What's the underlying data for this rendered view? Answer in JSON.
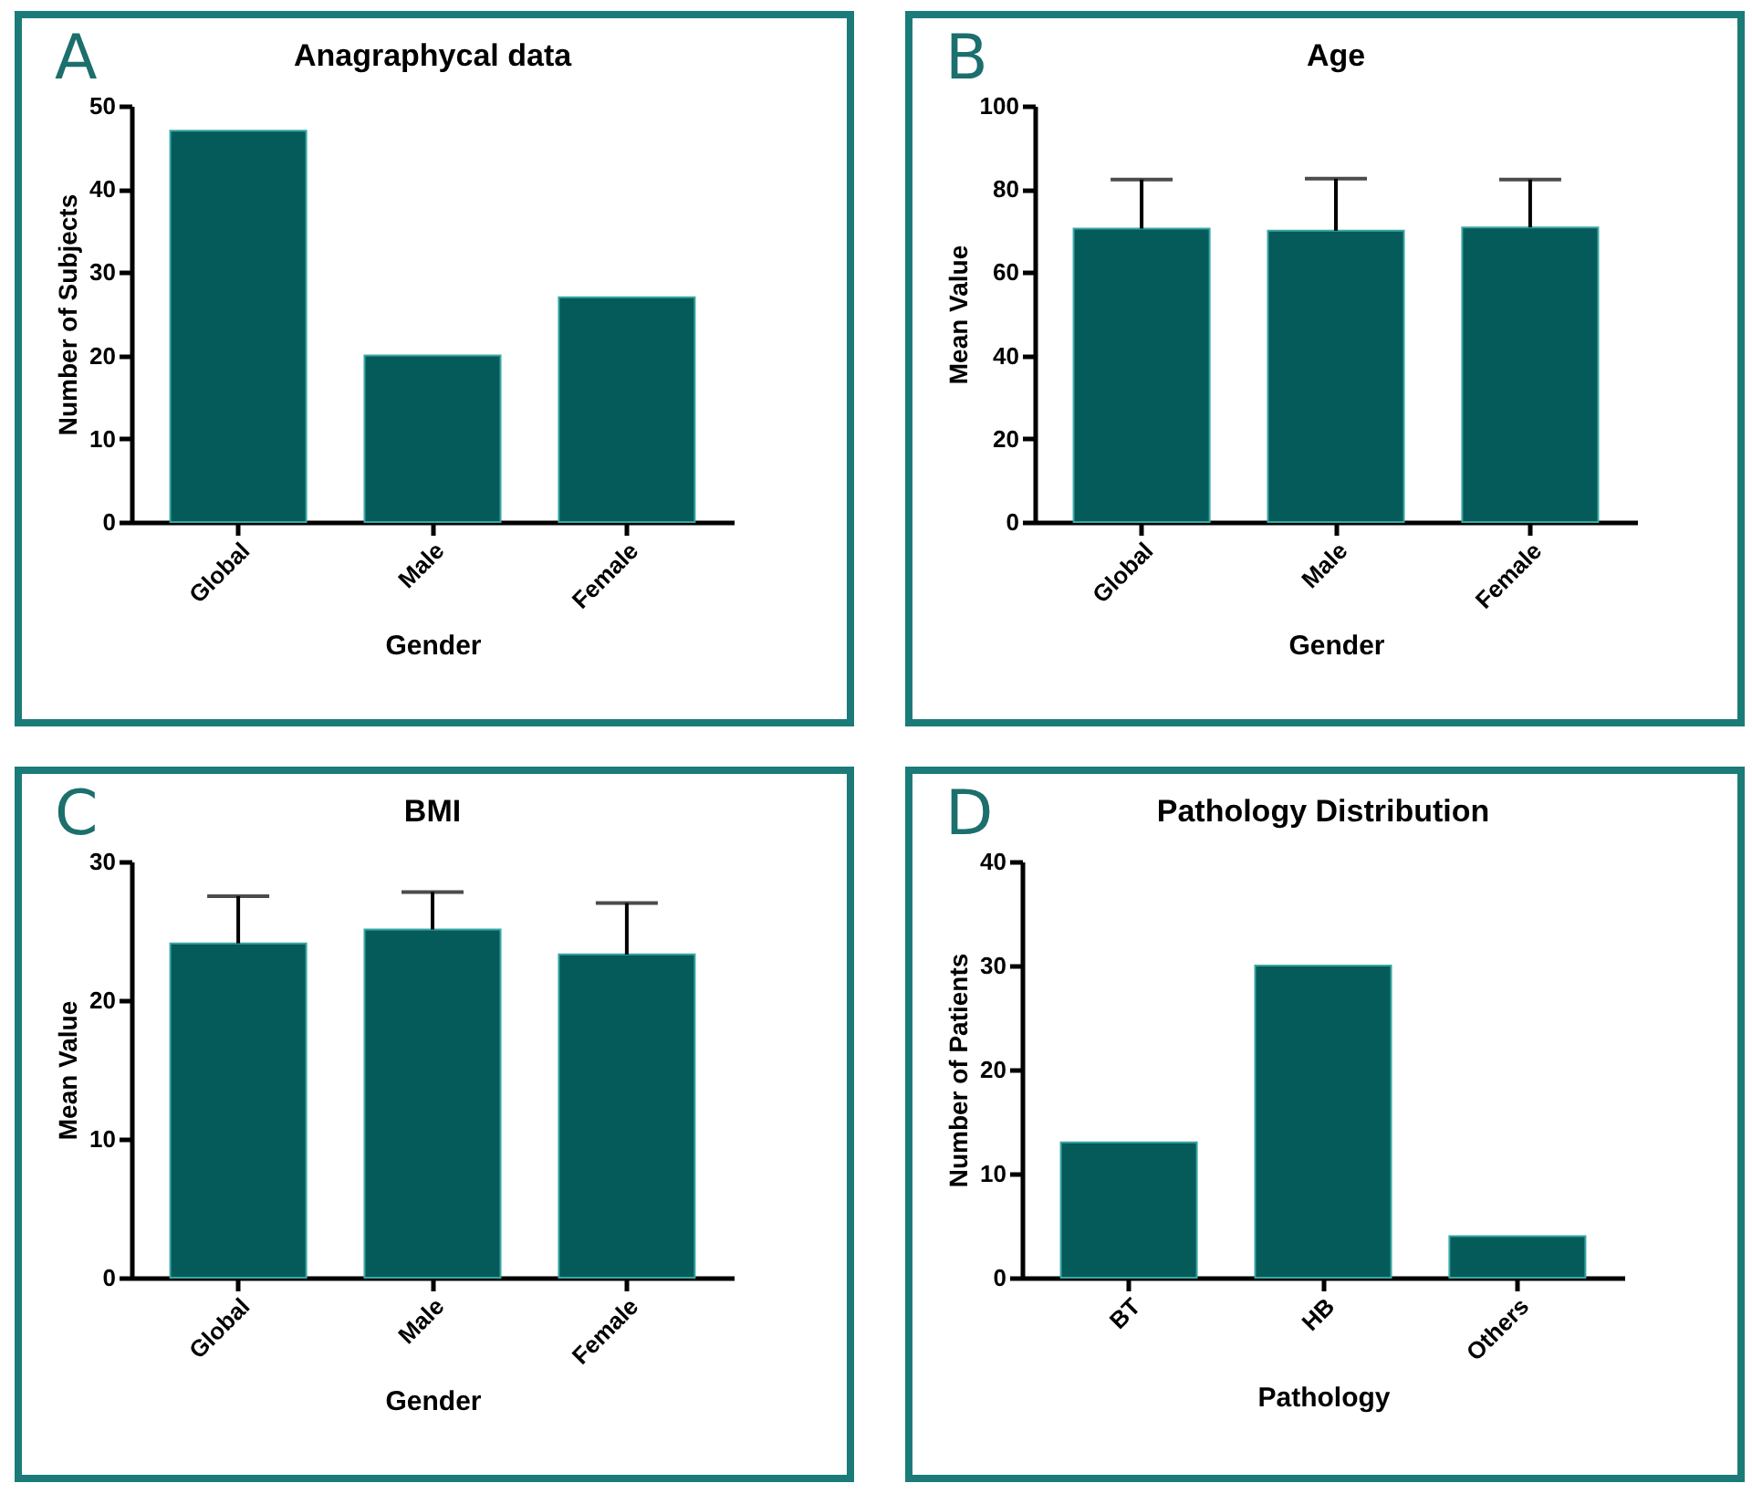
{
  "chart_data": [
    {
      "type": "bar",
      "title": "Anagraphycal data",
      "xlabel": "Gender",
      "ylabel": "Number of Subjects",
      "annotations": [
        "A"
      ],
      "categories": [
        "Global",
        "Male",
        "Female"
      ],
      "values": [
        47,
        20,
        27
      ],
      "color": "#045b59",
      "ylim": [
        0,
        50
      ],
      "yticks": [
        0,
        10,
        20,
        30,
        40,
        50
      ],
      "grid": false
    },
    {
      "type": "bar",
      "title": "Age",
      "xlabel": "Gender",
      "ylabel": "Mean Value",
      "annotations": [
        "B"
      ],
      "categories": [
        "Global",
        "Male",
        "Female"
      ],
      "values": [
        70.5,
        70,
        70.8
      ],
      "errors": [
        11.8,
        12.5,
        11.5
      ],
      "color": "#045b59",
      "ylim": [
        0,
        100
      ],
      "yticks": [
        0,
        20,
        40,
        60,
        80,
        100
      ],
      "grid": false
    },
    {
      "type": "bar",
      "title": "BMI",
      "xlabel": "Gender",
      "ylabel": "Mean Value",
      "annotations": [
        "C"
      ],
      "categories": [
        "Global",
        "Male",
        "Female"
      ],
      "values": [
        24.1,
        25.1,
        23.3
      ],
      "errors": [
        3.4,
        2.7,
        3.7
      ],
      "color": "#045b59",
      "ylim": [
        0,
        30
      ],
      "yticks": [
        0,
        10,
        20,
        30
      ],
      "grid": false
    },
    {
      "type": "bar",
      "title": "Pathology Distribution",
      "xlabel": "Pathology",
      "ylabel": "Number of Patients",
      "annotations": [
        "D"
      ],
      "categories": [
        "BT",
        "HB",
        "Others"
      ],
      "values": [
        13,
        30,
        4
      ],
      "color": "#045b59",
      "ylim": [
        0,
        40
      ],
      "yticks": [
        0,
        10,
        20,
        30,
        40
      ],
      "grid": false
    }
  ]
}
